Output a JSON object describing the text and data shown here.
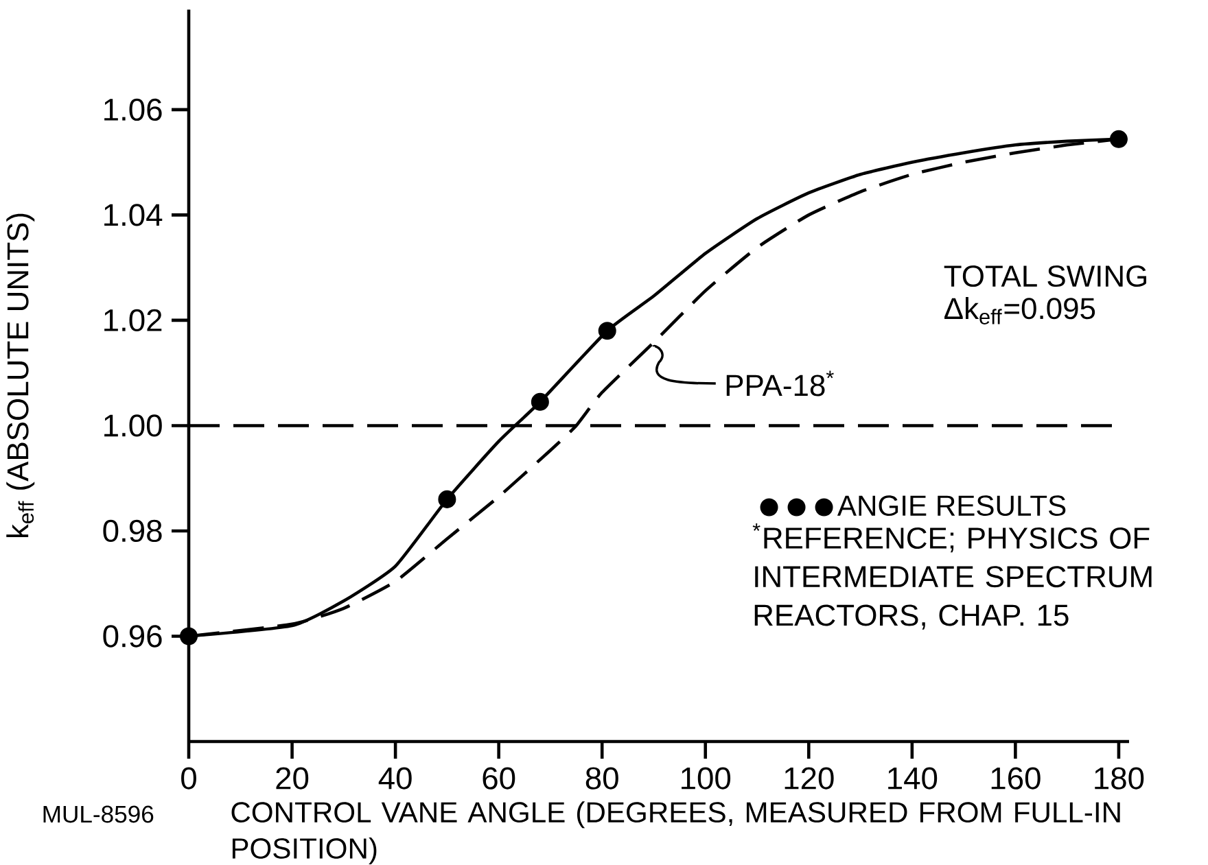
{
  "chart_data": {
    "type": "line",
    "xlabel": "CONTROL VANE ANGLE (DEGREES, MEASURED FROM FULL-IN POSITION)",
    "ylabel": "k$_{eff}$ (ABSOLUTE UNITS)",
    "xlim": [
      0,
      182
    ],
    "ylim": [
      0.94,
      1.079
    ],
    "xticks": [
      0,
      20,
      40,
      60,
      80,
      100,
      120,
      140,
      160,
      180
    ],
    "yticks": [
      0.96,
      0.98,
      {
        "value": 1.0,
        "label": "1.00"
      },
      1.02,
      1.04,
      1.06
    ],
    "legend": "right",
    "series": [
      {
        "name": "ANGIE RESULTS",
        "type": "scatter",
        "marker": "circle",
        "color": "#000000",
        "x": [
          0,
          50,
          68,
          81,
          180
        ],
        "values": [
          0.96,
          0.986,
          1.0045,
          1.018,
          1.0544
        ]
      },
      {
        "type": "line",
        "line_style": "solid",
        "color": "#000000",
        "x": [
          0,
          20,
          30,
          40,
          50,
          60,
          68,
          81,
          90,
          100,
          110,
          120,
          130,
          140,
          150,
          160,
          170,
          180
        ],
        "values": [
          0.96,
          0.962,
          0.9667,
          0.9733,
          0.986,
          0.997,
          1.0045,
          1.018,
          1.0246,
          1.0327,
          1.0393,
          1.0442,
          1.0477,
          1.05,
          1.0518,
          1.0533,
          1.054,
          1.0544
        ]
      },
      {
        "type": "line",
        "line_style": "dashed",
        "color": "#000000",
        "x": [
          0,
          20,
          30,
          40,
          50,
          60,
          70,
          75,
          80,
          90,
          100,
          110,
          120,
          130,
          140,
          150,
          160,
          170,
          180
        ],
        "values": [
          0.96,
          0.9623,
          0.9653,
          0.9704,
          0.9785,
          0.9865,
          0.9953,
          1.0,
          1.0063,
          1.0158,
          1.0256,
          1.0338,
          1.04,
          1.0444,
          1.0477,
          1.05,
          1.0518,
          1.0533,
          1.0544
        ]
      }
    ],
    "ref_lines": [
      {
        "axis": "y",
        "value": 1.0,
        "line_style": "dashed"
      }
    ],
    "annotations": [
      {
        "text": "PPA-18$^{*}$",
        "x": 90,
        "y": 1.015
      },
      "TOTAL SWING",
      "Δk$_{eff}$=0.095",
      "$^{*}$REFERENCE; PHYSICS OF INTERMEDIATE SPECTRUM REACTORS, CHAP. 15",
      "MUL-8596"
    ]
  }
}
